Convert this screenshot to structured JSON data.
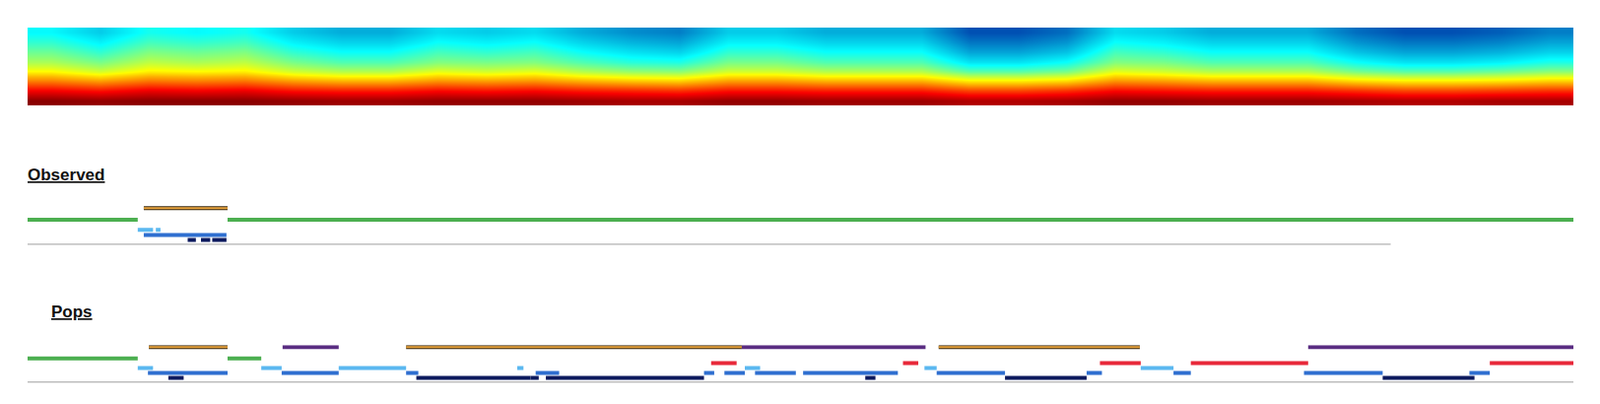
{
  "chart_data": [
    {
      "type": "heatmap",
      "tick_labels": false,
      "xlim": [
        -0.5,
        31.5
      ],
      "ylim": [
        -0.5,
        7.5
      ],
      "zlim": [
        0,
        1
      ],
      "cells": [
        [
          0.99,
          0.98,
          0.99,
          0.99,
          0.99,
          0.98,
          0.97,
          0.97,
          0.98,
          0.98,
          0.98,
          0.97,
          0.96,
          0.96,
          0.98,
          0.98,
          0.97,
          0.97,
          0.97,
          0.95,
          0.95,
          0.96,
          0.98,
          0.98,
          0.97,
          0.97,
          0.97,
          0.96,
          0.95,
          0.95,
          0.96,
          0.96
        ],
        [
          0.88,
          0.86,
          0.89,
          0.88,
          0.89,
          0.86,
          0.85,
          0.85,
          0.87,
          0.86,
          0.87,
          0.85,
          0.84,
          0.83,
          0.86,
          0.86,
          0.85,
          0.85,
          0.85,
          0.81,
          0.81,
          0.83,
          0.87,
          0.86,
          0.85,
          0.85,
          0.85,
          0.83,
          0.81,
          0.81,
          0.82,
          0.83
        ],
        [
          0.75,
          0.72,
          0.76,
          0.75,
          0.76,
          0.72,
          0.7,
          0.7,
          0.73,
          0.72,
          0.73,
          0.7,
          0.68,
          0.67,
          0.72,
          0.72,
          0.7,
          0.7,
          0.7,
          0.64,
          0.64,
          0.66,
          0.73,
          0.72,
          0.7,
          0.7,
          0.7,
          0.66,
          0.64,
          0.64,
          0.65,
          0.67
        ],
        [
          0.63,
          0.58,
          0.64,
          0.63,
          0.64,
          0.58,
          0.55,
          0.55,
          0.6,
          0.58,
          0.6,
          0.55,
          0.52,
          0.51,
          0.58,
          0.58,
          0.55,
          0.55,
          0.55,
          0.46,
          0.46,
          0.49,
          0.6,
          0.58,
          0.55,
          0.55,
          0.55,
          0.49,
          0.46,
          0.46,
          0.48,
          0.51
        ],
        [
          0.54,
          0.49,
          0.56,
          0.54,
          0.56,
          0.49,
          0.45,
          0.45,
          0.5,
          0.49,
          0.5,
          0.45,
          0.41,
          0.4,
          0.49,
          0.49,
          0.45,
          0.45,
          0.45,
          0.34,
          0.34,
          0.38,
          0.5,
          0.49,
          0.45,
          0.45,
          0.45,
          0.38,
          0.34,
          0.34,
          0.36,
          0.4
        ],
        [
          0.48,
          0.42,
          0.5,
          0.48,
          0.5,
          0.42,
          0.38,
          0.38,
          0.44,
          0.42,
          0.44,
          0.38,
          0.34,
          0.32,
          0.42,
          0.42,
          0.38,
          0.38,
          0.38,
          0.26,
          0.26,
          0.3,
          0.44,
          0.42,
          0.38,
          0.38,
          0.38,
          0.3,
          0.26,
          0.26,
          0.28,
          0.32
        ],
        [
          0.42,
          0.36,
          0.44,
          0.42,
          0.44,
          0.36,
          0.32,
          0.32,
          0.38,
          0.36,
          0.38,
          0.32,
          0.28,
          0.26,
          0.36,
          0.36,
          0.32,
          0.32,
          0.32,
          0.2,
          0.2,
          0.24,
          0.38,
          0.36,
          0.32,
          0.32,
          0.32,
          0.24,
          0.2,
          0.2,
          0.22,
          0.26
        ],
        [
          0.37,
          0.31,
          0.39,
          0.37,
          0.39,
          0.31,
          0.27,
          0.27,
          0.33,
          0.31,
          0.33,
          0.27,
          0.23,
          0.21,
          0.31,
          0.31,
          0.27,
          0.27,
          0.27,
          0.15,
          0.15,
          0.19,
          0.33,
          0.31,
          0.27,
          0.27,
          0.27,
          0.19,
          0.15,
          0.15,
          0.17,
          0.21
        ]
      ]
    },
    {
      "type": "timeline",
      "title": "Observed",
      "tick_labels": false,
      "xlim": [
        0,
        100
      ],
      "ylim": [
        -0.3,
        5.3
      ],
      "series": [
        {
          "color": "#9e9e9e",
          "level": 0,
          "segments": [
            [
              0,
              88.18
            ]
          ]
        },
        {
          "color": "#0d1a5e",
          "level": 0.6,
          "segments": [
            [
              10.36,
              10.89
            ],
            [
              11.22,
              11.82
            ],
            [
              11.95,
              12.87
            ]
          ]
        },
        {
          "color": "#2f6fd0",
          "level": 1.3,
          "segments": [
            [
              7.52,
              12.87
            ]
          ]
        },
        {
          "color": "#5bb8f0",
          "level": 2,
          "segments": [
            [
              7.13,
              8.12
            ],
            [
              8.3,
              8.6
            ]
          ]
        },
        {
          "color": "#4caf50",
          "level": 3.4,
          "segments": [
            [
              0,
              7.13
            ],
            [
              12.94,
              100
            ]
          ]
        },
        {
          "color": "#e8a33d",
          "level": 5,
          "line_style": "outlined",
          "segments": [
            [
              7.52,
              12.94
            ]
          ]
        }
      ]
    },
    {
      "type": "timeline",
      "title": "Pops",
      "tick_labels": false,
      "xlim": [
        0,
        100
      ],
      "ylim": [
        -0.3,
        5.3
      ],
      "series": [
        {
          "color": "#9e9e9e",
          "level": 0,
          "segments": [
            [
              0,
              100
            ]
          ]
        },
        {
          "color": "#0d1a5e",
          "level": 0.6,
          "segments": [
            [
              9.11,
              10.1
            ],
            [
              25.15,
              32.54
            ],
            [
              32.54,
              33.07
            ],
            [
              33.53,
              43.76
            ],
            [
              54.19,
              54.85
            ],
            [
              63.23,
              68.51
            ],
            [
              87.66,
              93.6
            ]
          ]
        },
        {
          "color": "#2f6fd0",
          "level": 1.3,
          "segments": [
            [
              7.79,
              12.94
            ],
            [
              16.44,
              20.13
            ],
            [
              24.49,
              25.28
            ],
            [
              32.87,
              34.39
            ],
            [
              43.76,
              44.42
            ],
            [
              45.08,
              46.4
            ],
            [
              47.06,
              49.7
            ],
            [
              50.17,
              56.3
            ],
            [
              58.81,
              63.23
            ],
            [
              68.51,
              69.5
            ],
            [
              74.13,
              75.25
            ],
            [
              82.57,
              87.66
            ],
            [
              93.27,
              94.59
            ]
          ]
        },
        {
          "color": "#5bb8f0",
          "level": 2,
          "segments": [
            [
              7.13,
              8.12
            ],
            [
              15.12,
              16.44
            ],
            [
              20.13,
              24.49
            ],
            [
              31.68,
              32.08
            ],
            [
              46.4,
              47.39
            ],
            [
              58.02,
              58.81
            ],
            [
              72.01,
              74.13
            ]
          ]
        },
        {
          "color": "#e8293a",
          "level": 2.7,
          "segments": [
            [
              44.22,
              45.87
            ],
            [
              56.63,
              57.62
            ],
            [
              69.37,
              72.01
            ],
            [
              75.25,
              82.84
            ],
            [
              94.59,
              100
            ]
          ]
        },
        {
          "color": "#4caf50",
          "level": 3.4,
          "segments": [
            [
              0,
              7.13
            ],
            [
              12.94,
              15.12
            ]
          ]
        },
        {
          "color": "#5a2d82",
          "level": 5,
          "segments": [
            [
              16.5,
              20.13
            ],
            [
              46.2,
              58.09
            ],
            [
              82.84,
              100
            ]
          ]
        },
        {
          "color": "#e8a33d",
          "level": 5,
          "line_style": "outlined",
          "segments": [
            [
              7.85,
              12.94
            ],
            [
              24.49,
              46.2
            ],
            [
              58.94,
              71.95
            ]
          ]
        }
      ]
    }
  ]
}
